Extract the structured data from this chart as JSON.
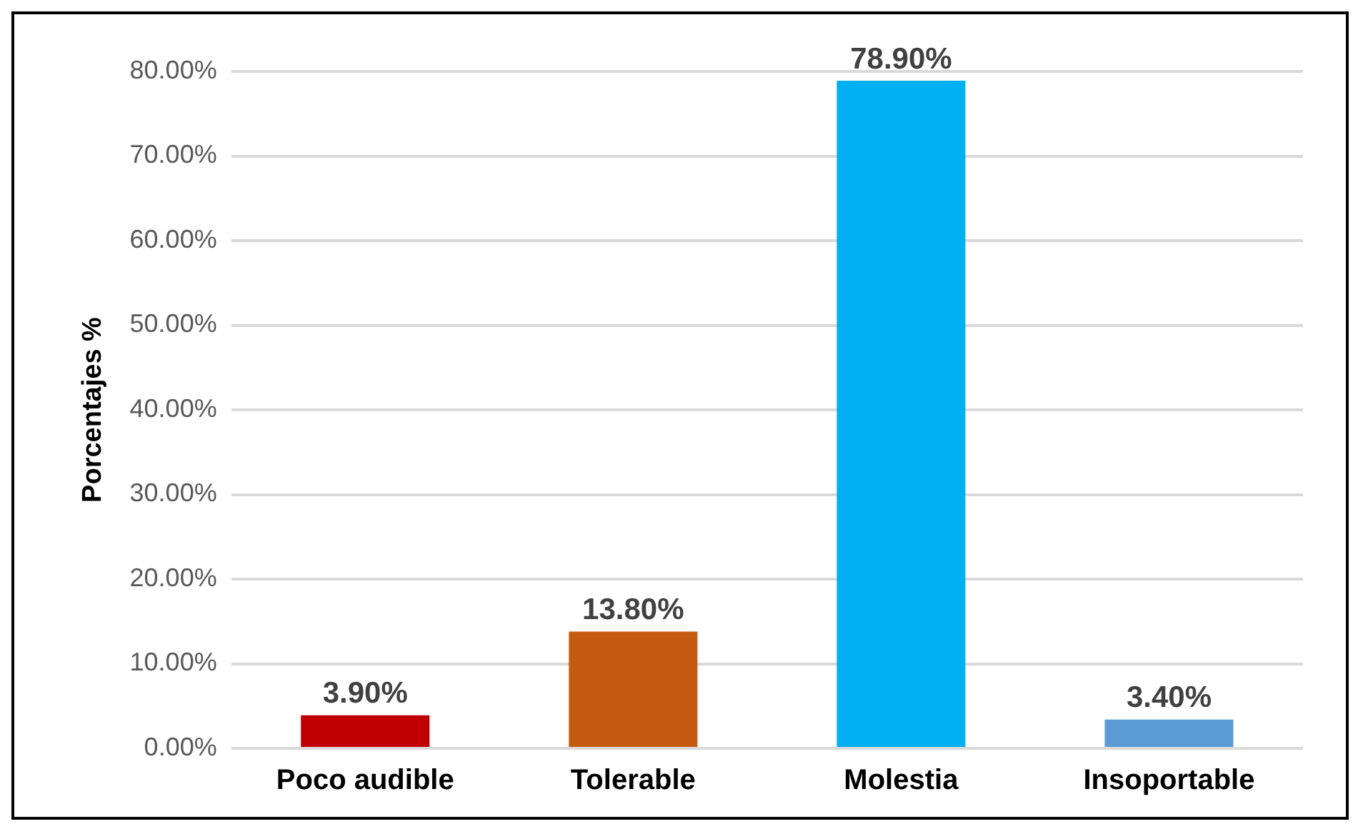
{
  "chart_data": {
    "type": "bar",
    "ylabel": "Porcentajes %",
    "categories": [
      "Poco audible",
      "Tolerable",
      "Molestia",
      "Insoportable"
    ],
    "values": [
      3.9,
      13.8,
      78.9,
      3.4
    ],
    "colors": [
      "#c00000",
      "#c55a11",
      "#00b0f0",
      "#5b9bd5"
    ],
    "value_labels": [
      "3.90%",
      "13.80%",
      "78.90%",
      "3.40%"
    ],
    "ylim": [
      0,
      80
    ],
    "yticks": [
      {
        "value": 0,
        "label": "0.00%"
      },
      {
        "value": 10,
        "label": "10.00%"
      },
      {
        "value": 20,
        "label": "20.00%"
      },
      {
        "value": 30,
        "label": "30.00%"
      },
      {
        "value": 40,
        "label": "40.00%"
      },
      {
        "value": 50,
        "label": "50.00%"
      },
      {
        "value": 60,
        "label": "60.00%"
      },
      {
        "value": 70,
        "label": "70.00%"
      },
      {
        "value": 80,
        "label": "80.00%"
      }
    ],
    "grid": "y",
    "legend": false
  }
}
